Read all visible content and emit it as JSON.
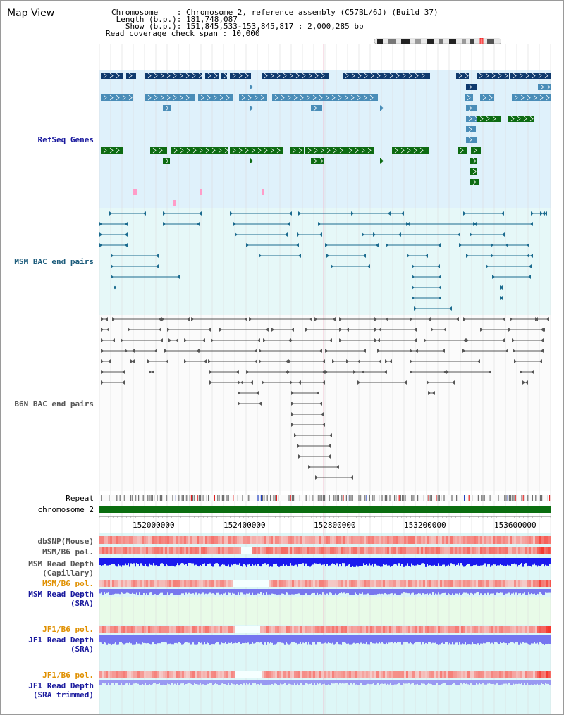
{
  "header": {
    "title": "Map View",
    "chromosome_key": "Chromosome    ",
    "chromosome_value": ": Chromosome 2, reference assembly (C57BL/6J) (Build 37)",
    "length_key": " Length (b.p.)",
    "length_value": ": 181,748,087",
    "show_key": "   Show (b.p.)",
    "show_value": ": 151,845,533-153,845,817 : 2,000,285 bp",
    "coverage_text": "Read coverage check span : 10,000"
  },
  "tracks": {
    "refseq": "RefSeq Genes",
    "msm_bac": "MSM BAC end pairs",
    "b6n_bac": "B6N BAC end pairs",
    "repeat": "Repeat",
    "chromosome": "chromosome 2",
    "dbsnp": "dbSNP(Mouse)",
    "msm_b6_pol": "MSM/B6 pol.",
    "msm_read_depth_cap_1": "MSM Read Depth",
    "msm_read_depth_cap_2": "(Capillary)",
    "msm_b6_pol_2": "MSM/B6 pol.",
    "msm_read_depth_sra_1": "MSM Read Depth",
    "msm_read_depth_sra_2": "(SRA)",
    "jf1_b6_pol_1": "JF1/B6 pol.",
    "jf1_read_depth_sra_1": "JF1 Read Depth",
    "jf1_read_depth_sra_2": "(SRA)",
    "jf1_b6_pol_2": "JF1/B6 pol.",
    "jf1_read_depth_trim_1": "JF1 Read Depth",
    "jf1_read_depth_trim_2": "(SRA trimmed)"
  },
  "axis_ticks": [
    "152000000",
    "152400000",
    "152800000",
    "153200000",
    "153600000"
  ],
  "colors": {
    "refseq_dark": "#0f3a6e",
    "refseq_light": "#4a8db8",
    "refseq_green": "#0d6b12",
    "msm_bac": "#1a6a8e",
    "b6n_bac": "#555555",
    "chromosome_bar": "#0b6e10",
    "label_blue": "#1a1a9e",
    "label_orange": "#e09000",
    "label_dark_teal": "#1a5a7a"
  }
}
